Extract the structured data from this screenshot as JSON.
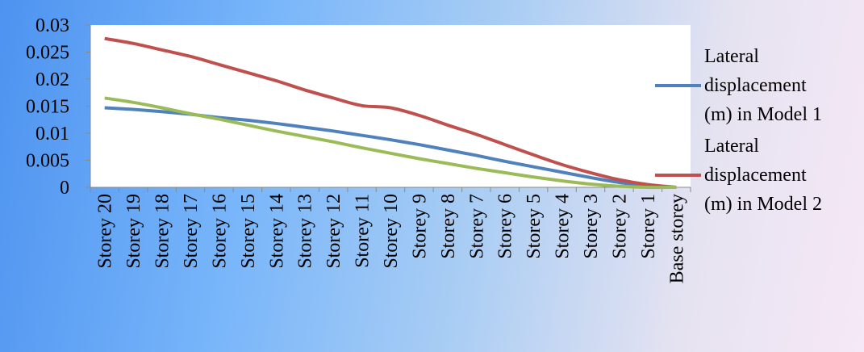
{
  "chart_data": {
    "type": "line",
    "title": "",
    "xlabel": "",
    "ylabel": "",
    "categories": [
      "Storey 20",
      "Storey 19",
      "Storey 18",
      "Storey 17",
      "Storey 16",
      "Storey 15",
      "Storey 14",
      "Storey 13",
      "Storey 12",
      "Storey 11",
      "Storey 10",
      "Storey 9",
      "Storey 8",
      "Storey 7",
      "Storey 6",
      "Storey 5",
      "Storey 4",
      "Storey 3",
      "Storey 2",
      "Storey 1",
      "Base storey"
    ],
    "ylim": [
      0,
      0.03
    ],
    "yticks": [
      "0",
      "0.005",
      "0.01",
      "0.015",
      "0.02",
      "0.025",
      "0.03"
    ],
    "grid": false,
    "legend_position": "right",
    "series": [
      {
        "name_lines": [
          "Lateral",
          "displacement",
          "(m) in Model 1"
        ],
        "color": "#4f81bd",
        "values": [
          0.0147,
          0.0144,
          0.014,
          0.0135,
          0.0129,
          0.0124,
          0.0118,
          0.0111,
          0.0104,
          0.0096,
          0.0088,
          0.0079,
          0.0069,
          0.0059,
          0.0048,
          0.0038,
          0.0028,
          0.0018,
          0.0009,
          0.0003,
          0
        ]
      },
      {
        "name_lines": [
          "Lateral",
          "displacement",
          "(m) in Model 2"
        ],
        "color": "#c0504d",
        "values": [
          0.0275,
          0.0266,
          0.0254,
          0.0242,
          0.0227,
          0.0212,
          0.0197,
          0.018,
          0.0165,
          0.0151,
          0.0147,
          0.0133,
          0.0115,
          0.0098,
          0.0079,
          0.006,
          0.0042,
          0.0027,
          0.0014,
          0.0005,
          0
        ]
      },
      {
        "color": "#9bbb59",
        "values": [
          0.0165,
          0.0157,
          0.0147,
          0.0136,
          0.0126,
          0.0115,
          0.0104,
          0.0094,
          0.0084,
          0.0073,
          0.0063,
          0.0053,
          0.0044,
          0.0035,
          0.0027,
          0.0019,
          0.0012,
          0.0006,
          0.0002,
          0,
          0
        ]
      }
    ]
  }
}
